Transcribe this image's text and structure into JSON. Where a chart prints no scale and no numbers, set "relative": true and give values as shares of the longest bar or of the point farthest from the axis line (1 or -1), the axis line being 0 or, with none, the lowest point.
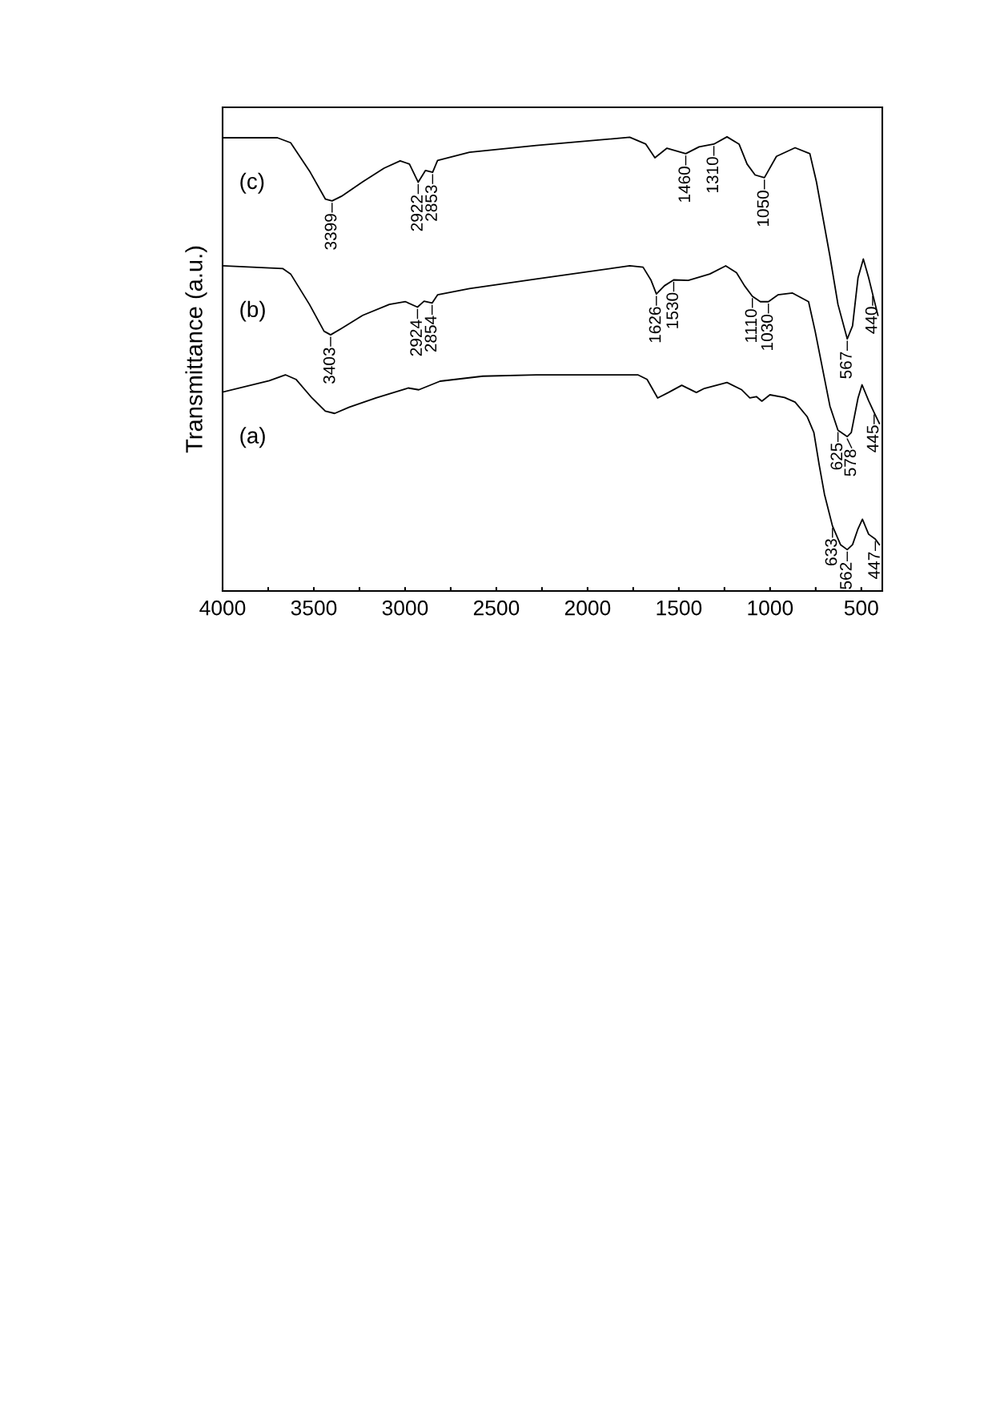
{
  "chart_data": {
    "type": "line",
    "relative": true,
    "ylabel": "Transmittance (a.u.)",
    "xlim": [
      4000,
      385
    ],
    "xticks": [
      4000,
      {
        "value": 3750,
        "label": null
      },
      3500,
      {
        "value": 3250,
        "label": null
      },
      3000,
      {
        "value": 2750,
        "label": null
      },
      2500,
      {
        "value": 2250,
        "label": null
      },
      2000,
      {
        "value": 1750,
        "label": null
      },
      1500,
      {
        "value": 1250,
        "label": null
      },
      1000,
      {
        "value": 750,
        "label": null
      },
      500
    ],
    "grid": false,
    "marker": "none",
    "line_style": "solid",
    "series": [
      {
        "name": "(a)",
        "color": "#000000",
        "x": [
          4000,
          3744,
          3656,
          3598,
          3510,
          3437,
          3386,
          3305,
          3159,
          2983,
          2925,
          2808,
          2574,
          2281,
          1725,
          1674,
          1616,
          1557,
          1484,
          1404,
          1360,
          1236,
          1155,
          1111,
          1075,
          1045,
          1001,
          921,
          863,
          797,
          760,
          731,
          702,
          658,
          614,
          577,
          548,
          518,
          494,
          460,
          423,
          401
        ],
        "values": [
          0.438,
          0.463,
          0.476,
          0.466,
          0.425,
          0.396,
          0.391,
          0.405,
          0.425,
          0.447,
          0.443,
          0.462,
          0.473,
          0.476,
          0.476,
          0.466,
          0.425,
          0.437,
          0.453,
          0.437,
          0.446,
          0.459,
          0.443,
          0.425,
          0.428,
          0.418,
          0.432,
          0.426,
          0.416,
          0.384,
          0.349,
          0.278,
          0.213,
          0.143,
          0.102,
          0.091,
          0.102,
          0.137,
          0.158,
          0.125,
          0.114,
          0.102
        ]
      },
      {
        "name": "(b)",
        "color": "#000000",
        "x": [
          4000,
          3671,
          3627,
          3524,
          3444,
          3408,
          3349,
          3232,
          3086,
          2998,
          2932,
          2896,
          2852,
          2822,
          2647,
          2281,
          1769,
          1696,
          1652,
          1623,
          1579,
          1528,
          1448,
          1330,
          1243,
          1184,
          1140,
          1097,
          1053,
          1009,
          957,
          877,
          789,
          753,
          672,
          628,
          577,
          555,
          518,
          496,
          460,
          430,
          401
        ],
        "values": [
          0.716,
          0.71,
          0.698,
          0.631,
          0.572,
          0.564,
          0.578,
          0.607,
          0.631,
          0.637,
          0.625,
          0.638,
          0.634,
          0.652,
          0.666,
          0.687,
          0.716,
          0.713,
          0.684,
          0.654,
          0.672,
          0.685,
          0.684,
          0.698,
          0.716,
          0.701,
          0.672,
          0.649,
          0.637,
          0.637,
          0.652,
          0.656,
          0.637,
          0.572,
          0.407,
          0.354,
          0.34,
          0.349,
          0.425,
          0.454,
          0.419,
          0.393,
          0.369
        ]
      },
      {
        "name": "(c)",
        "color": "#000000",
        "x": [
          4000,
          3700,
          3627,
          3524,
          3437,
          3400,
          3349,
          3232,
          3115,
          3027,
          2976,
          2928,
          2888,
          2849,
          2822,
          2647,
          2281,
          1769,
          1681,
          1631,
          1565,
          1462,
          1389,
          1308,
          1236,
          1170,
          1126,
          1082,
          1031,
          965,
          863,
          782,
          746,
          672,
          628,
          577,
          548,
          518,
          489,
          460,
          438,
          409
        ],
        "values": [
          0.998,
          0.998,
          0.987,
          0.925,
          0.863,
          0.859,
          0.869,
          0.901,
          0.931,
          0.947,
          0.94,
          0.9,
          0.926,
          0.922,
          0.948,
          0.966,
          0.981,
          0.999,
          0.984,
          0.954,
          0.975,
          0.963,
          0.978,
          0.984,
          1.0,
          0.984,
          0.94,
          0.916,
          0.91,
          0.957,
          0.976,
          0.963,
          0.901,
          0.737,
          0.631,
          0.555,
          0.584,
          0.69,
          0.731,
          0.69,
          0.654,
          0.607
        ]
      }
    ],
    "annotations": [
      {
        "text": "3399",
        "x": 3400,
        "y": 0.859
      },
      {
        "text": "2922",
        "x": 2928,
        "y": 0.9
      },
      {
        "text": "2853",
        "x": 2849,
        "y": 0.922
      },
      {
        "text": "1460",
        "x": 1462,
        "y": 0.963
      },
      {
        "text": "1310",
        "x": 1308,
        "y": 0.984
      },
      {
        "text": "1050",
        "x": 1031,
        "y": 0.91
      },
      {
        "text": "567",
        "x": 577,
        "y": 0.555
      },
      {
        "text": "440",
        "x": 438,
        "y": 0.654
      },
      {
        "text": "3403",
        "x": 3408,
        "y": 0.564
      },
      {
        "text": "2924",
        "x": 2932,
        "y": 0.625
      },
      {
        "text": "2854",
        "x": 2852,
        "y": 0.634
      },
      {
        "text": "1626",
        "x": 1623,
        "y": 0.654
      },
      {
        "text": "1530",
        "x": 1528,
        "y": 0.685
      },
      {
        "text": "1110",
        "x": 1097,
        "y": 0.649
      },
      {
        "text": "1030",
        "x": 1009,
        "y": 0.637
      },
      {
        "text": "625",
        "x": 628,
        "y": 0.354
      },
      {
        "text": "578",
        "x": 577,
        "y": 0.34
      },
      {
        "text": "445",
        "x": 430,
        "y": 0.393
      },
      {
        "text": "633",
        "x": 658,
        "y": 0.143
      },
      {
        "text": "562",
        "x": 577,
        "y": 0.091
      },
      {
        "text": "447",
        "x": 423,
        "y": 0.114
      }
    ]
  }
}
